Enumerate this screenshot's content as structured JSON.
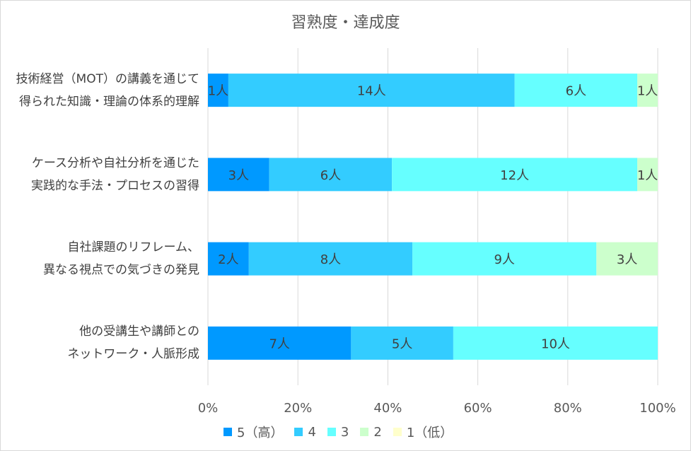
{
  "chart_data": {
    "type": "bar",
    "orientation": "horizontal",
    "stacked": "percent",
    "title": "習熟度・達成度",
    "categories": [
      [
        "技術経営（MOT）の講義を通じて",
        "得られた知識・理論の体系的理解"
      ],
      [
        "ケース分析や自社分析を通じた",
        "実践的な手法・プロセスの習得"
      ],
      [
        "自社課題のリフレーム、",
        "異なる視点での気づきの発見"
      ],
      [
        "他の受講生や講師との",
        "ネットワーク・人脈形成"
      ]
    ],
    "series": [
      {
        "name": "5（高）",
        "color": "#0099FF",
        "values": [
          1,
          3,
          2,
          7
        ]
      },
      {
        "name": "4",
        "color": "#33CCFF",
        "values": [
          14,
          6,
          8,
          5
        ]
      },
      {
        "name": "3",
        "color": "#66FFFF",
        "values": [
          6,
          12,
          9,
          10
        ]
      },
      {
        "name": "2",
        "color": "#CCFFCC",
        "values": [
          1,
          1,
          3,
          0
        ]
      },
      {
        "name": "1（低）",
        "color": "#FFFFCC",
        "values": [
          0,
          0,
          0,
          0
        ]
      }
    ],
    "value_unit": "人",
    "x_ticks": [
      "0%",
      "20%",
      "40%",
      "60%",
      "80%",
      "100%"
    ],
    "xlim": [
      0,
      100
    ],
    "grid": true,
    "legend_position": "bottom"
  }
}
